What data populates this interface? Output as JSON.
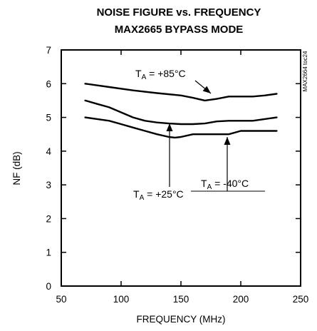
{
  "chart_data": {
    "type": "line",
    "title": "NOISE FIGURE vs. FREQUENCY",
    "subtitle": "MAX2665 BYPASS MODE",
    "xlabel": "FREQUENCY (MHz)",
    "ylabel": "NF (dB)",
    "xlim": [
      50,
      250
    ],
    "ylim": [
      0,
      7
    ],
    "xticks": [
      50,
      100,
      150,
      200,
      250
    ],
    "yticks": [
      0,
      1,
      2,
      3,
      4,
      5,
      6,
      7
    ],
    "grid": false,
    "side_label": "MAX2664 toc24",
    "series": [
      {
        "name": "+85°C",
        "x": [
          70,
          90,
          110,
          130,
          150,
          160,
          170,
          180,
          190,
          200,
          210,
          220,
          230
        ],
        "y": [
          6.0,
          5.9,
          5.8,
          5.72,
          5.65,
          5.58,
          5.5,
          5.55,
          5.62,
          5.62,
          5.62,
          5.65,
          5.7
        ]
      },
      {
        "name": "+25°C",
        "x": [
          70,
          80,
          90,
          100,
          110,
          120,
          130,
          140,
          150,
          160,
          170,
          180,
          190,
          200,
          210,
          220,
          230
        ],
        "y": [
          5.5,
          5.4,
          5.3,
          5.15,
          5.0,
          4.9,
          4.85,
          4.82,
          4.8,
          4.8,
          4.82,
          4.88,
          4.9,
          4.9,
          4.9,
          4.95,
          5.0
        ]
      },
      {
        "name": "-40°C",
        "x": [
          70,
          80,
          90,
          100,
          110,
          120,
          130,
          140,
          145,
          150,
          160,
          170,
          180,
          190,
          200,
          210,
          220,
          230
        ],
        "y": [
          5.0,
          4.95,
          4.9,
          4.8,
          4.7,
          4.6,
          4.5,
          4.42,
          4.4,
          4.42,
          4.5,
          4.5,
          4.5,
          4.5,
          4.6,
          4.6,
          4.6,
          4.6
        ]
      }
    ],
    "annotations": [
      {
        "series": "+85°C",
        "prefix": "T",
        "sub": "A",
        "text": " = +85°C"
      },
      {
        "series": "+25°C",
        "prefix": "T",
        "sub": "A",
        "text": " = +25°C"
      },
      {
        "series": "-40°C",
        "prefix": "T",
        "sub": "A",
        "text": " = -40°C"
      }
    ]
  }
}
